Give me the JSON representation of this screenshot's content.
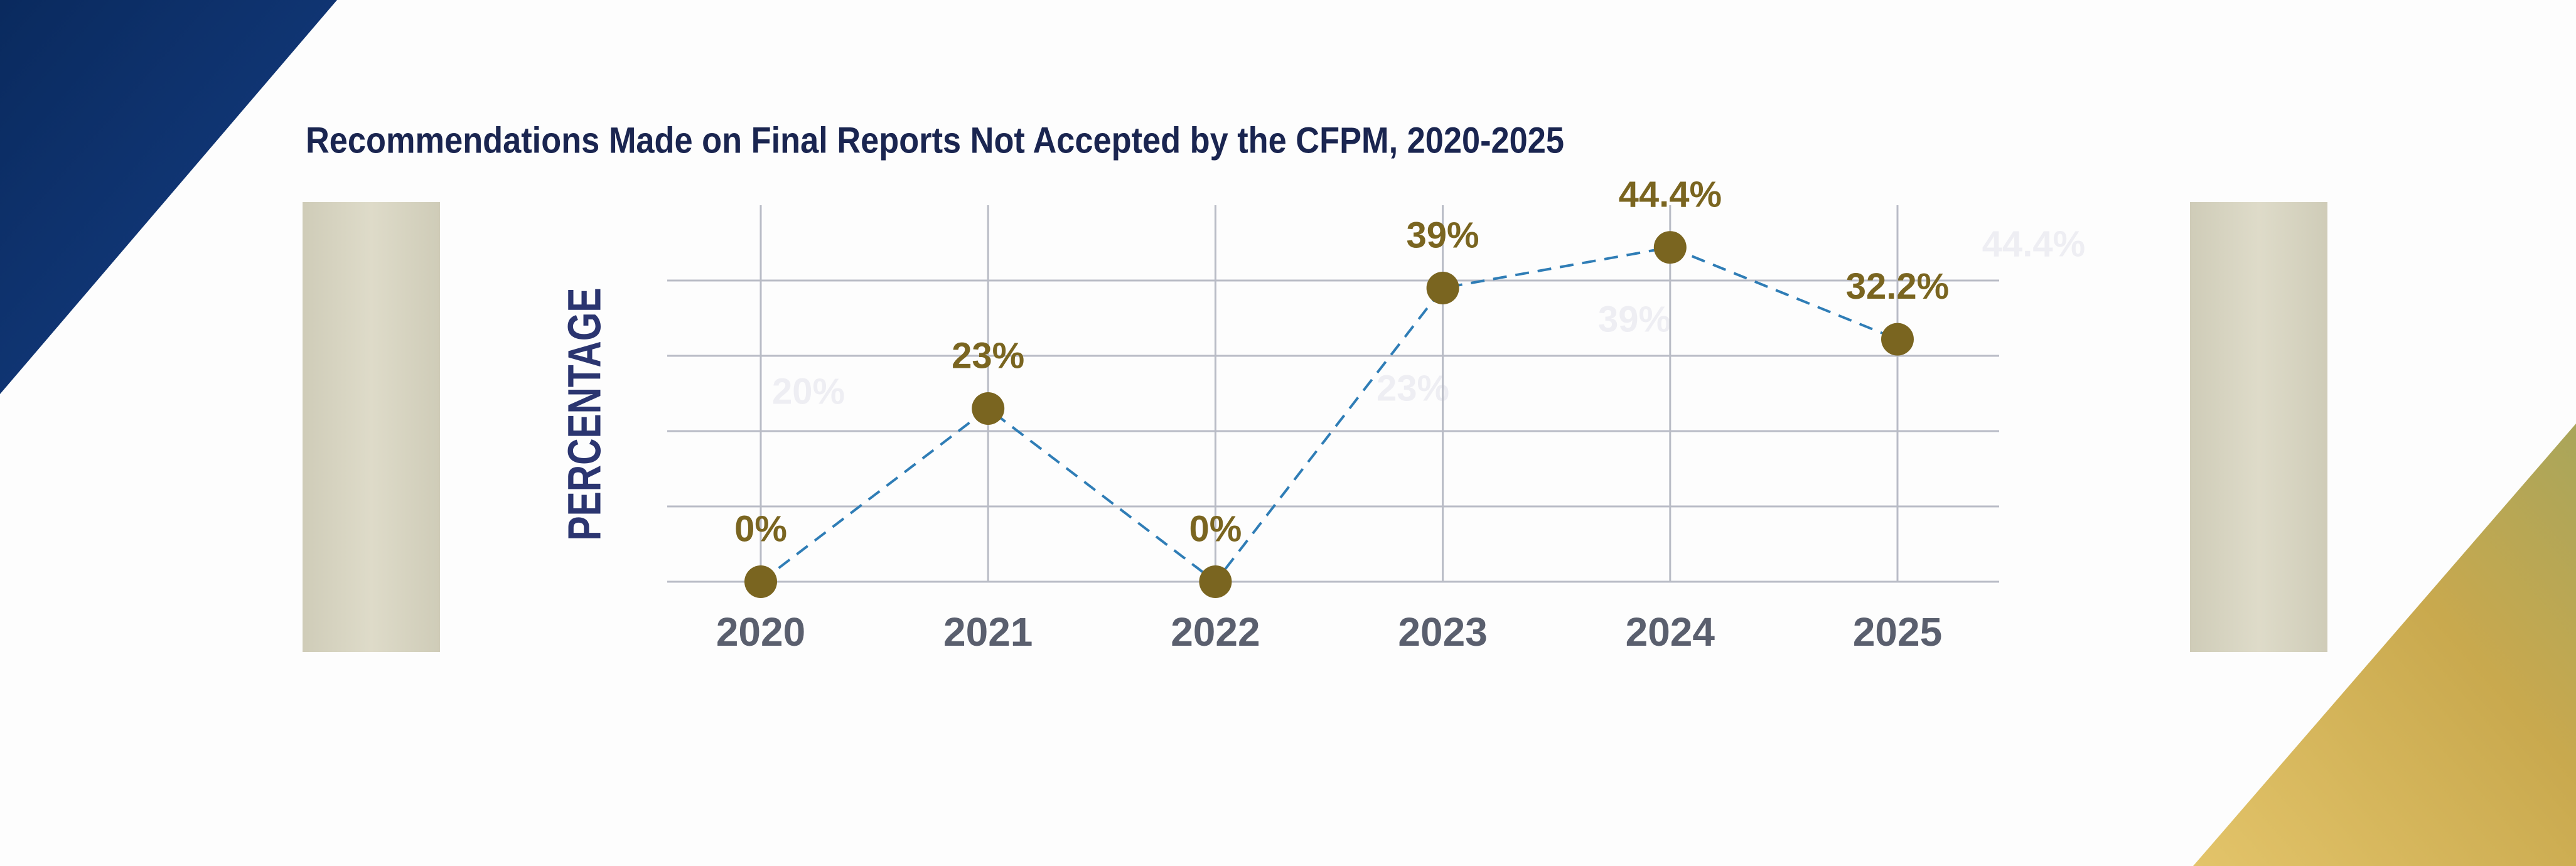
{
  "chart_data": {
    "type": "line",
    "title": "Recommendations Made on Final Reports Not Accepted by the CFPM, 2020-2025",
    "y_label": "PERCENTAGE",
    "categories": [
      "2020",
      "2021",
      "2022",
      "2023",
      "2024",
      "2025"
    ],
    "values": [
      0,
      23,
      0,
      39,
      44.4,
      32.2
    ],
    "value_labels": [
      "0%",
      "23%",
      "0%",
      "39%",
      "44.4%",
      "32.2%"
    ],
    "watermark_labels": [
      "20%",
      "23%",
      "39%",
      "44.4%"
    ],
    "ylim": [
      0,
      50
    ],
    "yticks": [
      0,
      10,
      20,
      30,
      40
    ],
    "grid": true,
    "color": "#7a6520",
    "line_color": "#2f7db6"
  }
}
